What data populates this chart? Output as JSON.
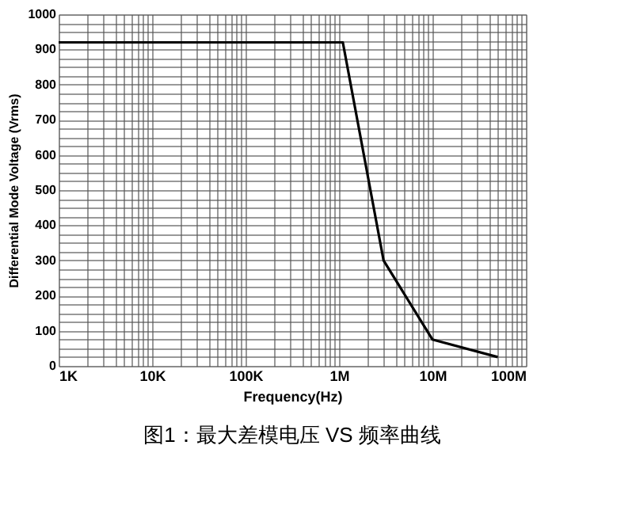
{
  "chart_data": {
    "type": "line",
    "title": "图1：最大差模电压 VS 频率曲线",
    "xlabel": "Frequency(Hz)",
    "ylabel": "Differential Mode Voltage (Vrms)",
    "x": [
      1000,
      1100000,
      3000000,
      10000000,
      50000000
    ],
    "series": [
      {
        "color": "#000000",
        "values": [
          920,
          920,
          300,
          75,
          25
        ]
      }
    ],
    "log": "x",
    "xlim": [
      1000,
      100000000
    ],
    "xticks": [
      {
        "value": 1000,
        "label": "1K"
      },
      {
        "value": 2000,
        "label": null
      },
      {
        "value": 3000,
        "label": null
      },
      {
        "value": 4000,
        "label": null
      },
      {
        "value": 5000,
        "label": null
      },
      {
        "value": 6000,
        "label": null
      },
      {
        "value": 7000,
        "label": null
      },
      {
        "value": 8000,
        "label": null
      },
      {
        "value": 9000,
        "label": null
      },
      {
        "value": 10000,
        "label": "10K"
      },
      {
        "value": 20000,
        "label": null
      },
      {
        "value": 30000,
        "label": null
      },
      {
        "value": 40000,
        "label": null
      },
      {
        "value": 50000,
        "label": null
      },
      {
        "value": 60000,
        "label": null
      },
      {
        "value": 70000,
        "label": null
      },
      {
        "value": 80000,
        "label": null
      },
      {
        "value": 90000,
        "label": null
      },
      {
        "value": 100000,
        "label": "100K"
      },
      {
        "value": 200000,
        "label": null
      },
      {
        "value": 300000,
        "label": null
      },
      {
        "value": 400000,
        "label": null
      },
      {
        "value": 500000,
        "label": null
      },
      {
        "value": 600000,
        "label": null
      },
      {
        "value": 700000,
        "label": null
      },
      {
        "value": 800000,
        "label": null
      },
      {
        "value": 900000,
        "label": null
      },
      {
        "value": 1000000,
        "label": "1M"
      },
      {
        "value": 2000000,
        "label": null
      },
      {
        "value": 3000000,
        "label": null
      },
      {
        "value": 4000000,
        "label": null
      },
      {
        "value": 5000000,
        "label": null
      },
      {
        "value": 6000000,
        "label": null
      },
      {
        "value": 7000000,
        "label": null
      },
      {
        "value": 8000000,
        "label": null
      },
      {
        "value": 9000000,
        "label": null
      },
      {
        "value": 10000000,
        "label": "10M"
      },
      {
        "value": 20000000,
        "label": null
      },
      {
        "value": 30000000,
        "label": null
      },
      {
        "value": 40000000,
        "label": null
      },
      {
        "value": 50000000,
        "label": null
      },
      {
        "value": 60000000,
        "label": null
      },
      {
        "value": 70000000,
        "label": null
      },
      {
        "value": 80000000,
        "label": null
      },
      {
        "value": 90000000,
        "label": null
      },
      {
        "value": 100000000,
        "label": "100M"
      }
    ],
    "ylim": [
      0,
      1000
    ],
    "yticks": [
      0,
      {
        "value": 25,
        "label": null
      },
      {
        "value": 50,
        "label": null
      },
      {
        "value": 75,
        "label": null
      },
      100,
      {
        "value": 125,
        "label": null
      },
      {
        "value": 150,
        "label": null
      },
      {
        "value": 175,
        "label": null
      },
      200,
      {
        "value": 225,
        "label": null
      },
      {
        "value": 250,
        "label": null
      },
      {
        "value": 275,
        "label": null
      },
      300,
      {
        "value": 325,
        "label": null
      },
      {
        "value": 350,
        "label": null
      },
      {
        "value": 375,
        "label": null
      },
      400,
      {
        "value": 425,
        "label": null
      },
      {
        "value": 450,
        "label": null
      },
      {
        "value": 475,
        "label": null
      },
      500,
      {
        "value": 525,
        "label": null
      },
      {
        "value": 550,
        "label": null
      },
      {
        "value": 575,
        "label": null
      },
      600,
      {
        "value": 625,
        "label": null
      },
      {
        "value": 650,
        "label": null
      },
      {
        "value": 675,
        "label": null
      },
      700,
      {
        "value": 725,
        "label": null
      },
      {
        "value": 750,
        "label": null
      },
      {
        "value": 775,
        "label": null
      },
      800,
      {
        "value": 825,
        "label": null
      },
      {
        "value": 850,
        "label": null
      },
      {
        "value": 875,
        "label": null
      },
      900,
      {
        "value": 925,
        "label": null
      },
      {
        "value": 950,
        "label": null
      },
      {
        "value": 975,
        "label": null
      },
      1000
    ],
    "grid": true
  }
}
